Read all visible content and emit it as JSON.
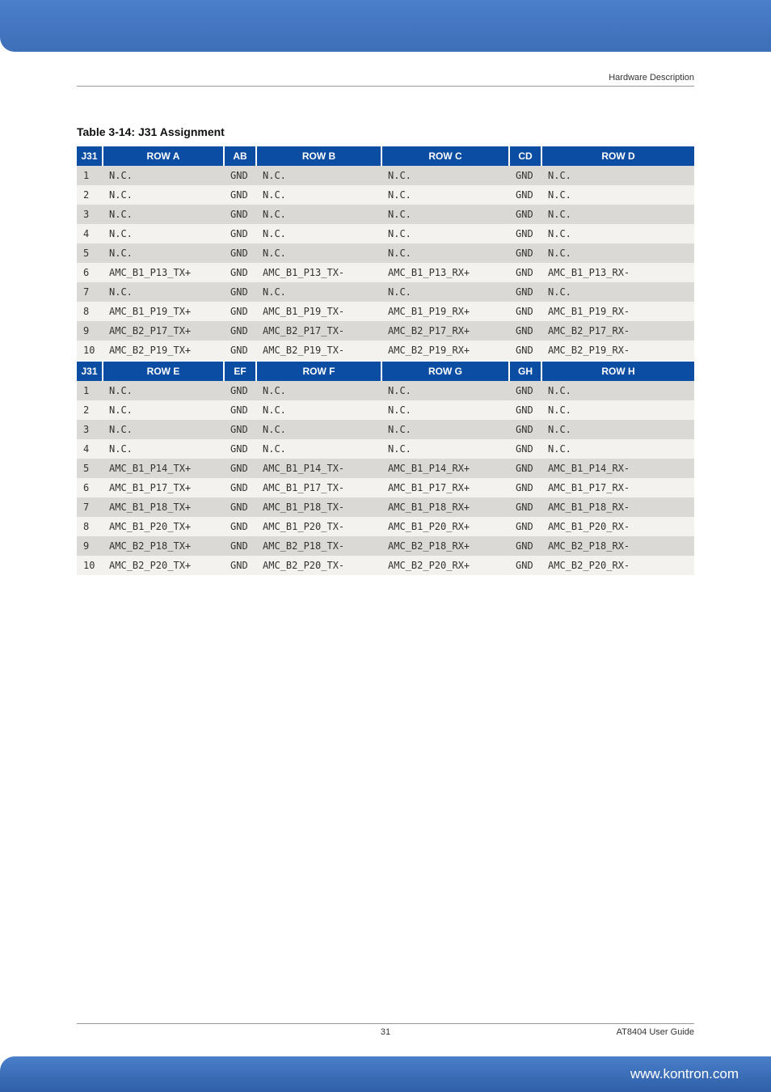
{
  "header_text": "Hardware Description",
  "caption": "Table 3-14:   J31 Assignment",
  "footer": {
    "page": "31",
    "doc": "AT8404 User  Guide",
    "url": "www.kontron.com"
  },
  "header_bg": "#0a4da2",
  "header_fg": "#ffffff",
  "row_even_bg": "#dbd9d5",
  "row_odd_bg": "#f3f2ef",
  "tables": [
    {
      "headers": [
        "J31",
        "ROW A",
        "AB",
        "ROW B",
        "ROW C",
        "CD",
        "ROW D"
      ],
      "rows": [
        [
          "1",
          "N.C.",
          "GND",
          "N.C.",
          "N.C.",
          "GND",
          "N.C."
        ],
        [
          "2",
          "N.C.",
          "GND",
          "N.C.",
          "N.C.",
          "GND",
          "N.C."
        ],
        [
          "3",
          "N.C.",
          "GND",
          "N.C.",
          "N.C.",
          "GND",
          "N.C."
        ],
        [
          "4",
          "N.C.",
          "GND",
          "N.C.",
          "N.C.",
          "GND",
          "N.C."
        ],
        [
          "5",
          "N.C.",
          "GND",
          "N.C.",
          "N.C.",
          "GND",
          "N.C."
        ],
        [
          "6",
          "AMC_B1_P13_TX+",
          "GND",
          "AMC_B1_P13_TX-",
          "AMC_B1_P13_RX+",
          "GND",
          "AMC_B1_P13_RX-"
        ],
        [
          "7",
          "N.C.",
          "GND",
          "N.C.",
          "N.C.",
          "GND",
          "N.C."
        ],
        [
          "8",
          "AMC_B1_P19_TX+",
          "GND",
          "AMC_B1_P19_TX-",
          "AMC_B1_P19_RX+",
          "GND",
          "AMC_B1_P19_RX-"
        ],
        [
          "9",
          "AMC_B2_P17_TX+",
          "GND",
          "AMC_B2_P17_TX-",
          "AMC_B2_P17_RX+",
          "GND",
          "AMC_B2_P17_RX-"
        ],
        [
          "10",
          "AMC_B2_P19_TX+",
          "GND",
          "AMC_B2_P19_TX-",
          "AMC_B2_P19_RX+",
          "GND",
          "AMC_B2_P19_RX-"
        ]
      ]
    },
    {
      "headers": [
        "J31",
        "ROW E",
        "EF",
        "ROW F",
        "ROW G",
        "GH",
        "ROW H"
      ],
      "rows": [
        [
          "1",
          "N.C.",
          "GND",
          "N.C.",
          "N.C.",
          "GND",
          "N.C."
        ],
        [
          "2",
          "N.C.",
          "GND",
          "N.C.",
          "N.C.",
          "GND",
          "N.C."
        ],
        [
          "3",
          "N.C.",
          "GND",
          "N.C.",
          "N.C.",
          "GND",
          "N.C."
        ],
        [
          "4",
          "N.C.",
          "GND",
          "N.C.",
          "N.C.",
          "GND",
          "N.C."
        ],
        [
          "5",
          "AMC_B1_P14_TX+",
          "GND",
          "AMC_B1_P14_TX-",
          "AMC_B1_P14_RX+",
          "GND",
          "AMC_B1_P14_RX-"
        ],
        [
          "6",
          "AMC_B1_P17_TX+",
          "GND",
          "AMC_B1_P17_TX-",
          "AMC_B1_P17_RX+",
          "GND",
          "AMC_B1_P17_RX-"
        ],
        [
          "7",
          "AMC_B1_P18_TX+",
          "GND",
          "AMC_B1_P18_TX-",
          "AMC_B1_P18_RX+",
          "GND",
          "AMC_B1_P18_RX-"
        ],
        [
          "8",
          "AMC_B1_P20_TX+",
          "GND",
          "AMC_B1_P20_TX-",
          "AMC_B1_P20_RX+",
          "GND",
          "AMC_B1_P20_RX-"
        ],
        [
          "9",
          "AMC_B2_P18_TX+",
          "GND",
          "AMC_B2_P18_TX-",
          "AMC_B2_P18_RX+",
          "GND",
          "AMC_B2_P18_RX-"
        ],
        [
          "10",
          "AMC_B2_P20_TX+",
          "GND",
          "AMC_B2_P20_TX-",
          "AMC_B2_P20_RX+",
          "GND",
          "AMC_B2_P20_RX-"
        ]
      ]
    }
  ]
}
